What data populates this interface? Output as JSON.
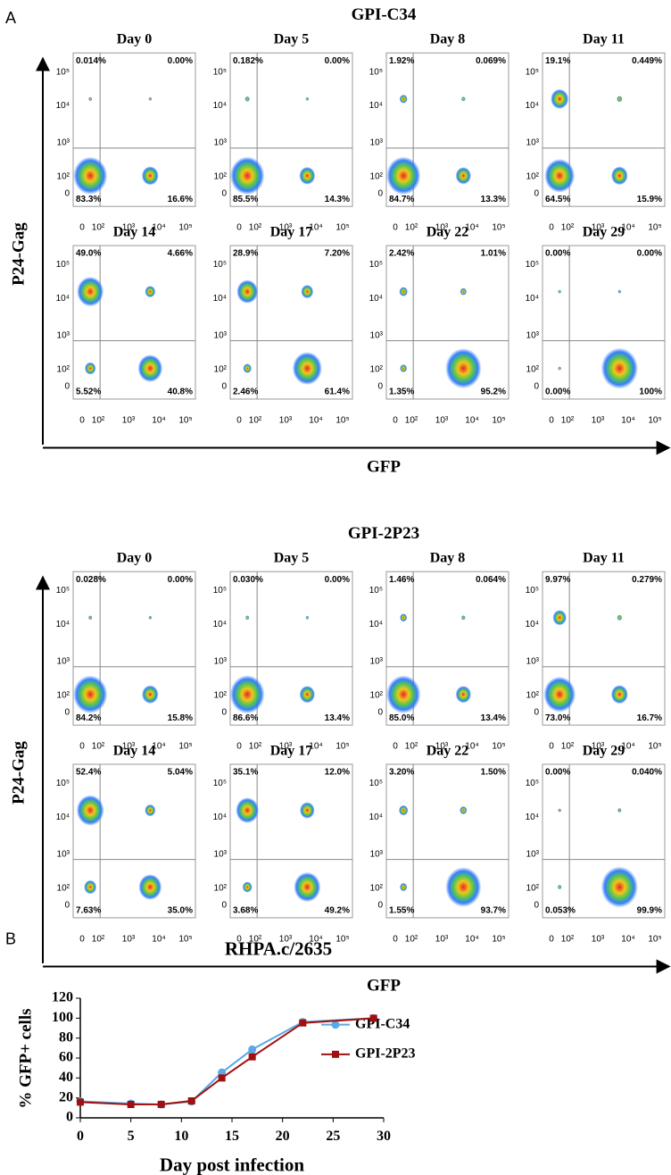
{
  "panel_a": {
    "label": "A",
    "x_label": "GFP",
    "y_label": "P24-Gag",
    "x_ticks": [
      "0",
      "10²",
      "10³",
      "10⁴",
      "10⁵"
    ],
    "y_ticks": [
      "10⁵",
      "10⁴",
      "10³",
      "10²",
      "0"
    ],
    "groups": [
      {
        "title": "GPI-C34",
        "plots": [
          {
            "day": "Day 0",
            "ul": "0.014%",
            "ur": "0.00%",
            "ll": "83.3%",
            "lr": "16.6%"
          },
          {
            "day": "Day 5",
            "ul": "0.182%",
            "ur": "0.00%",
            "ll": "85.5%",
            "lr": "14.3%"
          },
          {
            "day": "Day 8",
            "ul": "1.92%",
            "ur": "0.069%",
            "ll": "84.7%",
            "lr": "13.3%"
          },
          {
            "day": "Day 11",
            "ul": "19.1%",
            "ur": "0.449%",
            "ll": "64.5%",
            "lr": "15.9%"
          },
          {
            "day": "Day 14",
            "ul": "49.0%",
            "ur": "4.66%",
            "ll": "5.52%",
            "lr": "40.8%"
          },
          {
            "day": "Day 17",
            "ul": "28.9%",
            "ur": "7.20%",
            "ll": "2.46%",
            "lr": "61.4%"
          },
          {
            "day": "Day 22",
            "ul": "2.42%",
            "ur": "1.01%",
            "ll": "1.35%",
            "lr": "95.2%"
          },
          {
            "day": "Day 29",
            "ul": "0.00%",
            "ur": "0.00%",
            "ll": "0.00%",
            "lr": "100%"
          }
        ]
      },
      {
        "title": "GPI-2P23",
        "plots": [
          {
            "day": "Day 0",
            "ul": "0.028%",
            "ur": "0.00%",
            "ll": "84.2%",
            "lr": "15.8%"
          },
          {
            "day": "Day 5",
            "ul": "0.030%",
            "ur": "0.00%",
            "ll": "86.6%",
            "lr": "13.4%"
          },
          {
            "day": "Day 8",
            "ul": "1.46%",
            "ur": "0.064%",
            "ll": "85.0%",
            "lr": "13.4%"
          },
          {
            "day": "Day 11",
            "ul": "9.97%",
            "ur": "0.279%",
            "ll": "73.0%",
            "lr": "16.7%"
          },
          {
            "day": "Day 14",
            "ul": "52.4%",
            "ur": "5.04%",
            "ll": "7.63%",
            "lr": "35.0%"
          },
          {
            "day": "Day 17",
            "ul": "35.1%",
            "ur": "12.0%",
            "ll": "3.68%",
            "lr": "49.2%"
          },
          {
            "day": "Day 22",
            "ul": "3.20%",
            "ur": "1.50%",
            "ll": "1.55%",
            "lr": "93.7%"
          },
          {
            "day": "Day 29",
            "ul": "0.00%",
            "ur": "0.040%",
            "ll": "0.053%",
            "lr": "99.9%"
          }
        ]
      }
    ]
  },
  "chart_data": {
    "type": "line",
    "label": "B",
    "title": "RHPA.c/2635",
    "x_label": "Day post infection",
    "y_label": "% GFP+ cells",
    "x": [
      0,
      5,
      8,
      11,
      14,
      17,
      22,
      29
    ],
    "series": [
      {
        "name": "GPI-C34",
        "color": "#5aa9e6",
        "marker": "circle",
        "values": [
          16.6,
          14.3,
          13.4,
          16.3,
          45.5,
          68.6,
          96.2,
          100
        ]
      },
      {
        "name": "GPI-2P23",
        "color": "#a01010",
        "marker": "square",
        "values": [
          15.8,
          13.4,
          13.5,
          17.0,
          40.0,
          61.2,
          95.2,
          99.9
        ]
      }
    ],
    "xlim": [
      0,
      30
    ],
    "xticks": [
      0,
      5,
      10,
      15,
      20,
      25,
      30
    ],
    "ylim": [
      0,
      120
    ],
    "yticks": [
      0,
      20,
      40,
      60,
      80,
      100,
      120
    ]
  }
}
